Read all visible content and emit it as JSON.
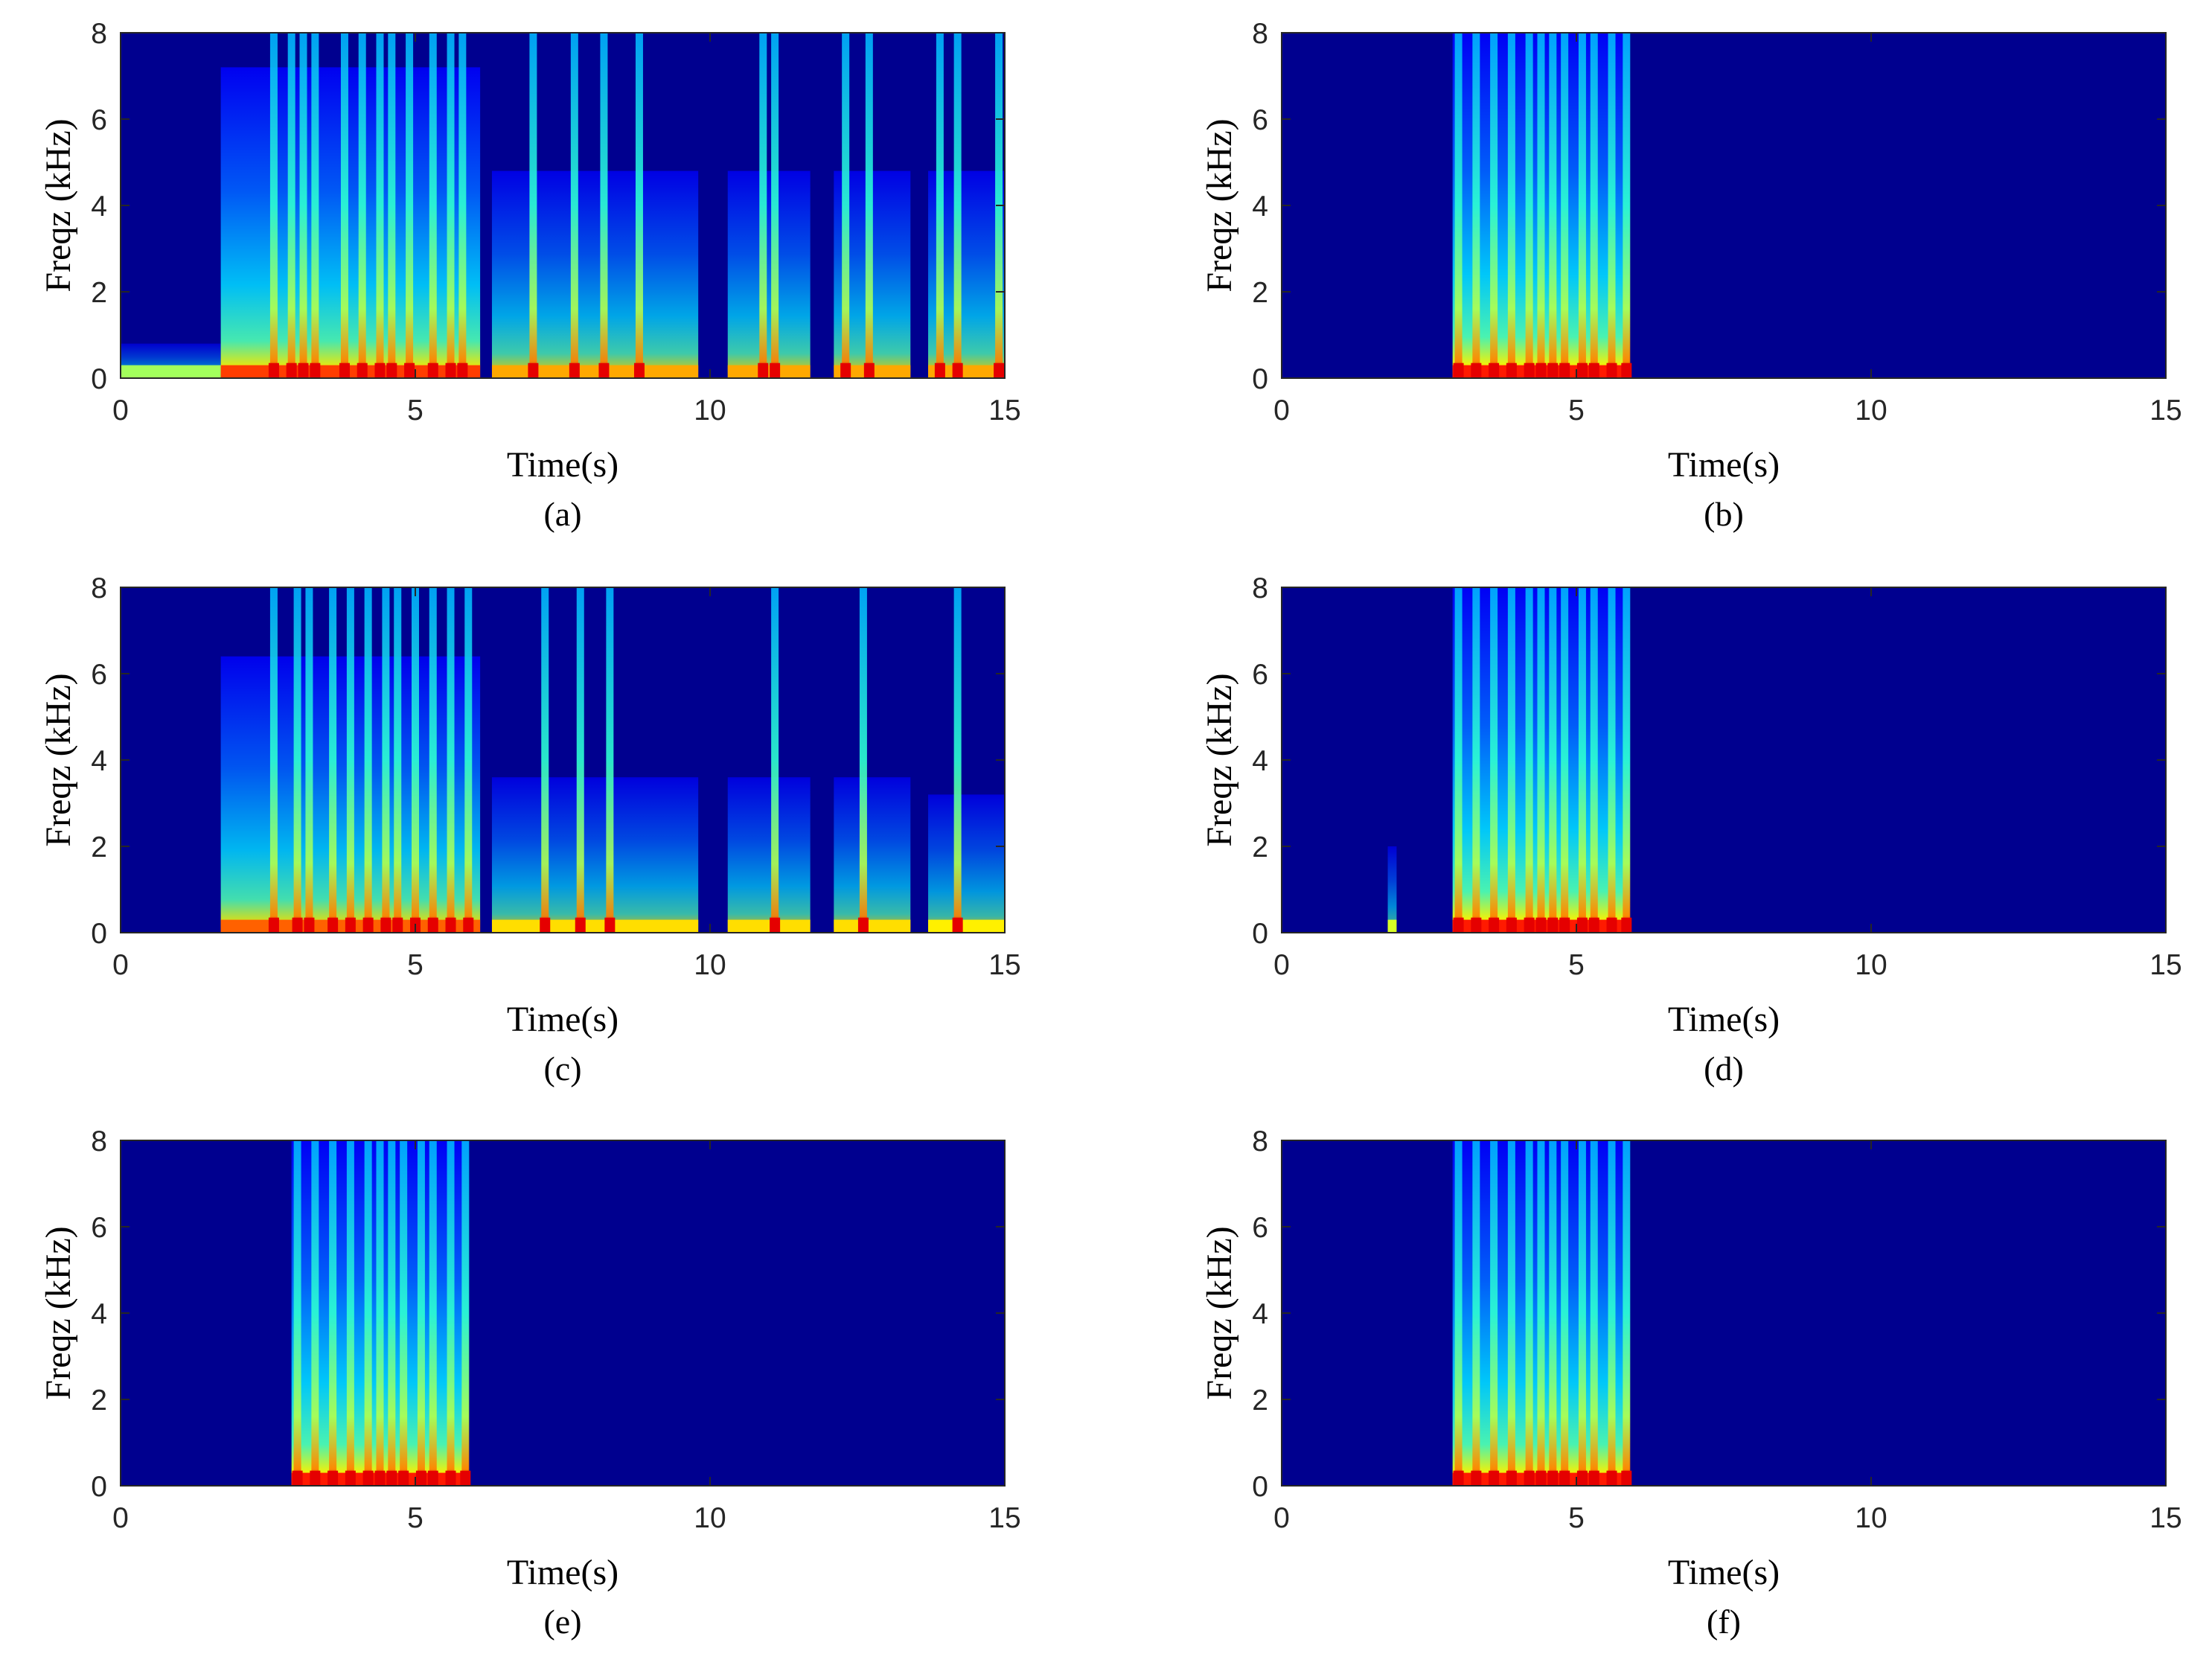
{
  "chart_data": [
    {
      "type": "heatmap",
      "panel": "(a)",
      "xlabel": "Time(s)",
      "ylabel": "Freqz (kHz)",
      "xlim": [
        0,
        15
      ],
      "ylim": [
        0,
        8
      ],
      "xticks": [
        0,
        5,
        10,
        15
      ],
      "yticks": [
        0,
        2,
        4,
        6,
        8
      ],
      "colormap": "jet",
      "background_color": "#00008f",
      "active_regions_s": [
        [
          0,
          1.7,
          0.1
        ],
        [
          1.7,
          6.1,
          0.9
        ],
        [
          6.3,
          9.8,
          0.6
        ],
        [
          10.3,
          11.7,
          0.6
        ],
        [
          12.1,
          13.4,
          0.6
        ],
        [
          13.7,
          15,
          0.6
        ]
      ],
      "speech_bursts_s": [
        2.6,
        2.9,
        3.1,
        3.3,
        3.8,
        4.1,
        4.4,
        4.6,
        4.9,
        5.3,
        5.6,
        5.8,
        7.0,
        7.7,
        8.2,
        8.8,
        10.9,
        11.1,
        12.3,
        12.7,
        13.9,
        14.2,
        14.9
      ]
    },
    {
      "type": "heatmap",
      "panel": "(b)",
      "xlabel": "Time(s)",
      "ylabel": "Freqz (kHz)",
      "xlim": [
        0,
        15
      ],
      "ylim": [
        0,
        8
      ],
      "xticks": [
        0,
        5,
        10,
        15
      ],
      "yticks": [
        0,
        2,
        4,
        6,
        8
      ],
      "colormap": "jet",
      "background_color": "#00008f",
      "active_regions_s": [
        [
          2.9,
          5.9,
          1.0
        ]
      ],
      "speech_bursts_s": [
        3.0,
        3.3,
        3.6,
        3.9,
        4.2,
        4.4,
        4.6,
        4.8,
        5.1,
        5.3,
        5.6,
        5.85
      ]
    },
    {
      "type": "heatmap",
      "panel": "(c)",
      "xlabel": "Time(s)",
      "ylabel": "Freqz (kHz)",
      "xlim": [
        0,
        15
      ],
      "ylim": [
        0,
        8
      ],
      "xticks": [
        0,
        5,
        10,
        15
      ],
      "yticks": [
        0,
        2,
        4,
        6,
        8
      ],
      "colormap": "jet",
      "background_color": "#00008f",
      "active_regions_s": [
        [
          1.7,
          6.1,
          0.8
        ],
        [
          6.3,
          9.8,
          0.45
        ],
        [
          10.3,
          11.7,
          0.45
        ],
        [
          12.1,
          13.4,
          0.45
        ],
        [
          13.7,
          15,
          0.4
        ]
      ],
      "speech_bursts_s": [
        2.6,
        3.0,
        3.2,
        3.6,
        3.9,
        4.2,
        4.5,
        4.7,
        5.0,
        5.3,
        5.6,
        5.9,
        7.2,
        7.8,
        8.3,
        11.1,
        12.6,
        14.2
      ]
    },
    {
      "type": "heatmap",
      "panel": "(d)",
      "xlabel": "Time(s)",
      "ylabel": "Freqz (kHz)",
      "xlim": [
        0,
        15
      ],
      "ylim": [
        0,
        8
      ],
      "xticks": [
        0,
        5,
        10,
        15
      ],
      "yticks": [
        0,
        2,
        4,
        6,
        8
      ],
      "colormap": "jet",
      "background_color": "#00008f",
      "active_regions_s": [
        [
          1.8,
          1.95,
          0.25
        ],
        [
          2.9,
          5.9,
          1.0
        ]
      ],
      "speech_bursts_s": [
        3.0,
        3.3,
        3.6,
        3.9,
        4.2,
        4.4,
        4.6,
        4.8,
        5.1,
        5.3,
        5.6,
        5.85
      ]
    },
    {
      "type": "heatmap",
      "panel": "(e)",
      "xlabel": "Time(s)",
      "ylabel": "Freqz (kHz)",
      "xlim": [
        0,
        15
      ],
      "ylim": [
        0,
        8
      ],
      "xticks": [
        0,
        5,
        10,
        15
      ],
      "yticks": [
        0,
        2,
        4,
        6,
        8
      ],
      "colormap": "jet",
      "background_color": "#00008f",
      "active_regions_s": [
        [
          2.9,
          5.9,
          1.0
        ]
      ],
      "speech_bursts_s": [
        3.0,
        3.3,
        3.6,
        3.9,
        4.2,
        4.4,
        4.6,
        4.8,
        5.1,
        5.3,
        5.6,
        5.85
      ]
    },
    {
      "type": "heatmap",
      "panel": "(f)",
      "xlabel": "Time(s)",
      "ylabel": "Freqz (kHz)",
      "xlim": [
        0,
        15
      ],
      "ylim": [
        0,
        8
      ],
      "xticks": [
        0,
        5,
        10,
        15
      ],
      "yticks": [
        0,
        2,
        4,
        6,
        8
      ],
      "colormap": "jet",
      "background_color": "#00008f",
      "active_regions_s": [
        [
          2.9,
          5.9,
          1.0
        ]
      ],
      "speech_bursts_s": [
        3.0,
        3.3,
        3.6,
        3.9,
        4.2,
        4.4,
        4.6,
        4.8,
        5.1,
        5.3,
        5.6,
        5.85
      ]
    }
  ]
}
